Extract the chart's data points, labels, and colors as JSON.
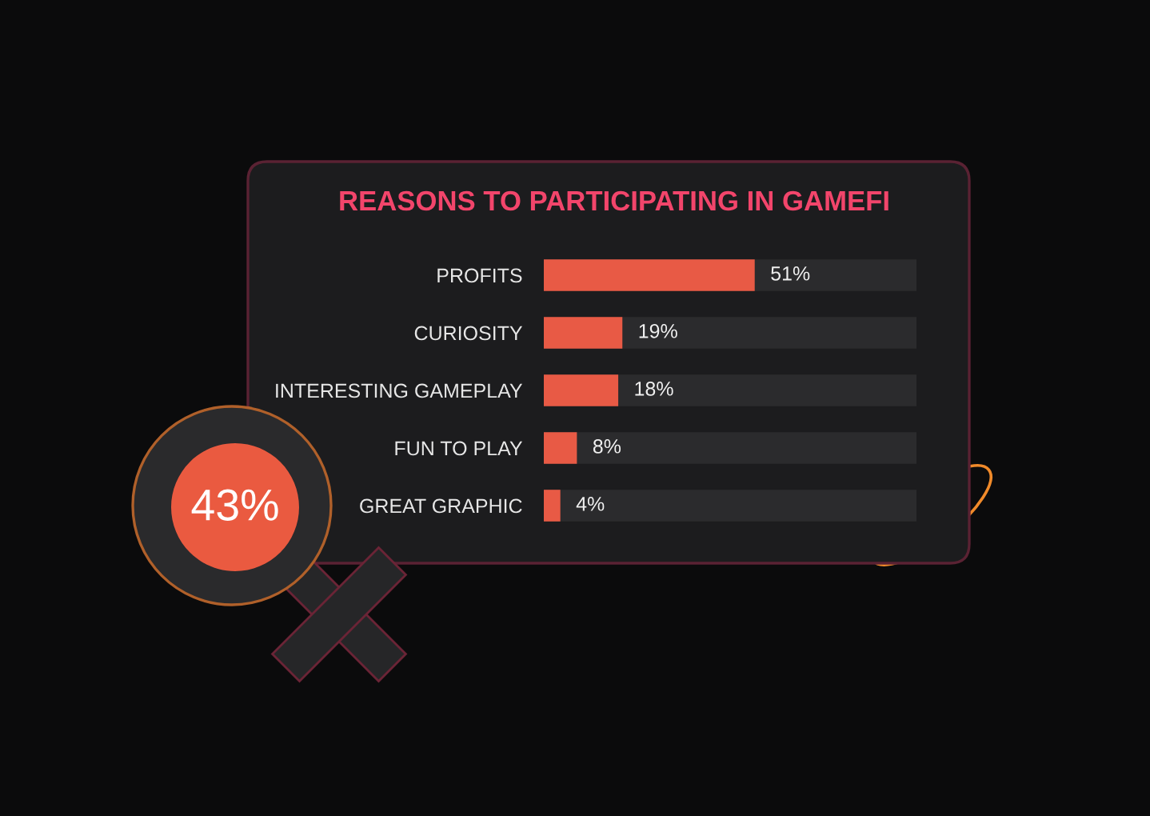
{
  "chart_data": {
    "type": "bar",
    "orientation": "horizontal",
    "title": "REASONS TO PARTICIPATING IN GAMEFI",
    "categories": [
      "PROFITS",
      "CURIOSITY",
      "INTERESTING GAMEPLAY",
      "FUN TO PLAY",
      "GREAT GRAPHIC"
    ],
    "values": [
      51,
      19,
      18,
      8,
      4
    ],
    "value_labels": [
      "51%",
      "19%",
      "18%",
      "8%",
      "4%"
    ],
    "color": "#e85a45",
    "tick_labels": "y",
    "annotations": [
      "43%"
    ]
  }
}
